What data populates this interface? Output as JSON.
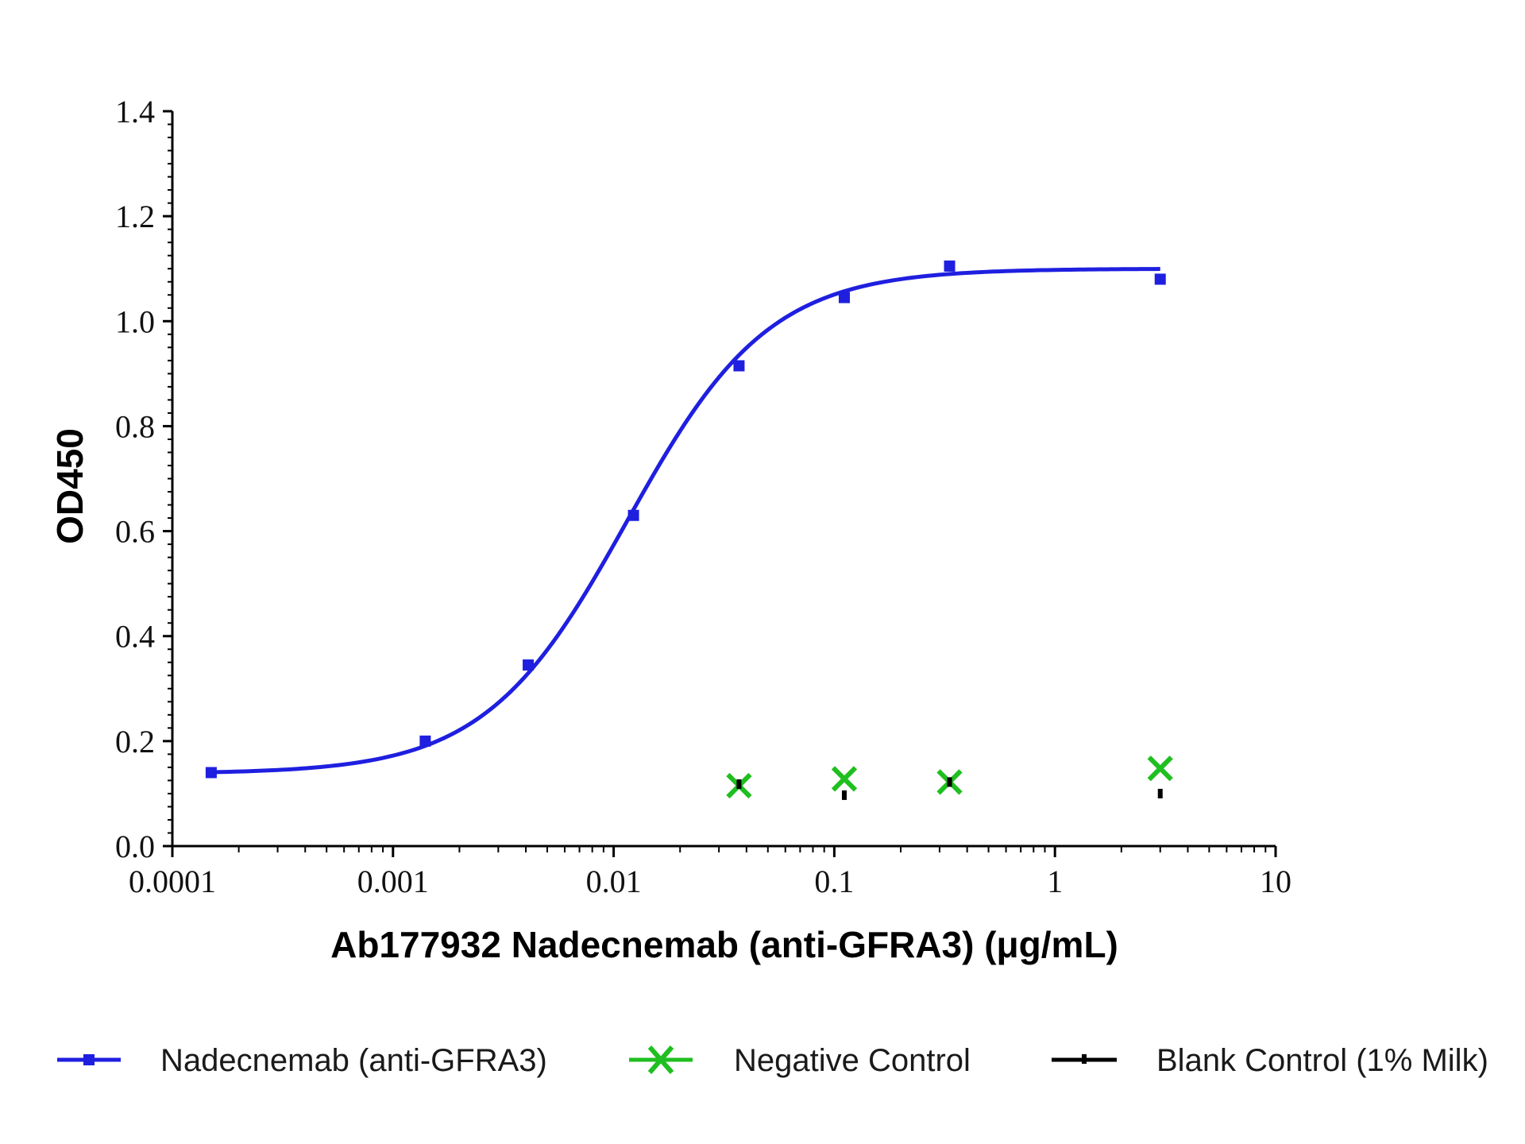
{
  "chart_data": {
    "type": "scatter",
    "xscale": "log",
    "xlabel": "Ab177932 Nadecnemab (anti-GFRA3) (μg/mL)",
    "ylabel": "OD450",
    "xlim": [
      0.0001,
      10
    ],
    "ylim": [
      0,
      1.4
    ],
    "x_ticks": [
      0.0001,
      0.001,
      0.01,
      0.1,
      1,
      10
    ],
    "x_tick_labels": [
      "0.0001",
      "0.001",
      "0.01",
      "0.1",
      "1",
      "10"
    ],
    "y_ticks": [
      0.0,
      0.2,
      0.4,
      0.6,
      0.8,
      1.0,
      1.2,
      1.4
    ],
    "y_tick_labels": [
      "0.0",
      "0.2",
      "0.4",
      "0.6",
      "0.8",
      "1.0",
      "1.2",
      "1.4"
    ],
    "grid": false,
    "legend_position": "bottom",
    "series": [
      {
        "name": "Nadecnemab (anti-GFRA3)",
        "color": "#1f1fe0",
        "marker": "square",
        "fit": "4PL sigmoid",
        "x": [
          0.00015,
          0.0014,
          0.0041,
          0.0123,
          0.037,
          0.111,
          0.333,
          3.0
        ],
        "y": [
          0.14,
          0.2,
          0.345,
          0.63,
          0.915,
          1.045,
          1.105,
          1.08
        ]
      },
      {
        "name": "Negative Control",
        "color": "#1fbf1f",
        "marker": "x",
        "x": [
          0.037,
          0.111,
          0.333,
          3.0
        ],
        "y": [
          0.115,
          0.128,
          0.122,
          0.148
        ]
      },
      {
        "name": "Blank Control (1% Milk)",
        "color": "#000000",
        "marker": "dash",
        "x": [
          0.037,
          0.111,
          0.333,
          3.0
        ],
        "y": [
          0.118,
          0.097,
          0.122,
          0.1
        ]
      }
    ],
    "fit_curve": {
      "series": "Nadecnemab (anti-GFRA3)",
      "bottom": 0.138,
      "top": 1.1,
      "ec50": 0.0115,
      "hill": 1.35
    }
  }
}
